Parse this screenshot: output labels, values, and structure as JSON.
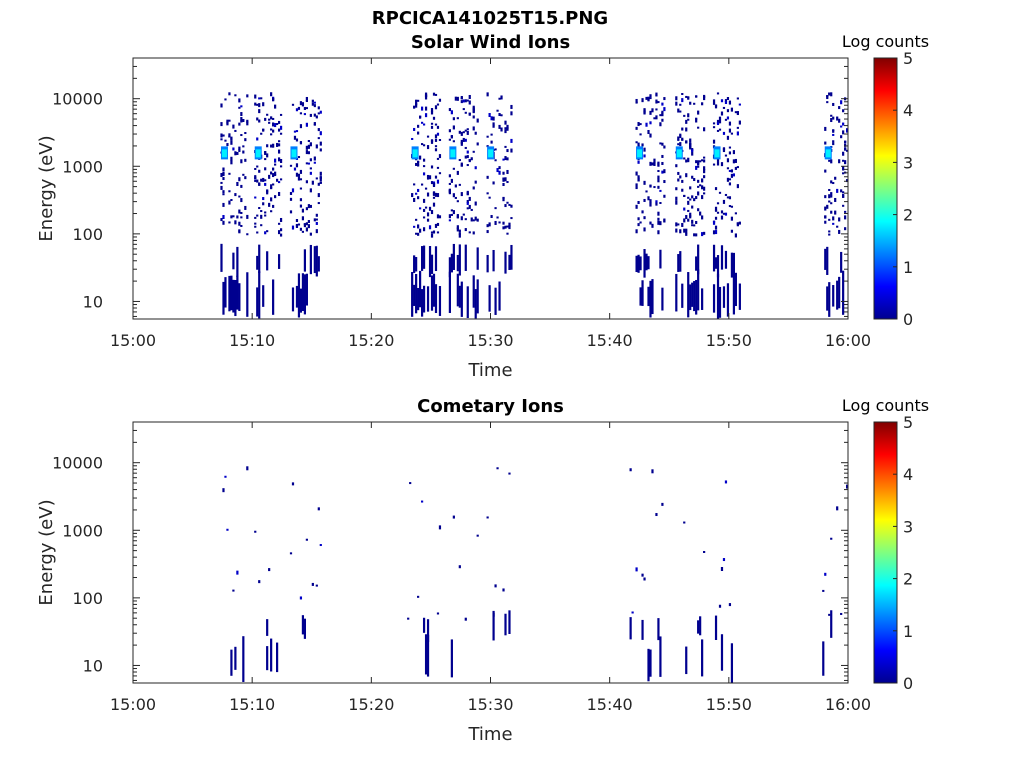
{
  "figure": {
    "title": "RPCICA141025T15.PNG"
  },
  "chart_data": [
    {
      "type": "heatmap",
      "title": "Solar Wind Ions",
      "xlabel": "Time",
      "ylabel": "Energy (eV)",
      "x_ticks": [
        "15:00",
        "15:10",
        "15:20",
        "15:30",
        "15:40",
        "15:50",
        "16:00"
      ],
      "xlim": [
        "15:00",
        "16:00"
      ],
      "y_scale": "log",
      "y_ticks": [
        "10",
        "100",
        "1000",
        "10000"
      ],
      "ylim": [
        5.5,
        40000
      ],
      "colorbar": {
        "label": "Log counts",
        "range": [
          0,
          5
        ],
        "ticks": [
          "0",
          "1",
          "2",
          "3",
          "4",
          "5"
        ],
        "colormap": "jet"
      },
      "bursts": [
        {
          "start": "15:07:20",
          "end": "15:09:40",
          "peak_energy_eV": 1500,
          "peak_log_counts": 1.8
        },
        {
          "start": "15:10:10",
          "end": "15:12:30",
          "peak_energy_eV": 1500,
          "peak_log_counts": 1.8
        },
        {
          "start": "15:13:10",
          "end": "15:15:50",
          "peak_energy_eV": 1500,
          "peak_log_counts": 1.8
        },
        {
          "start": "15:23:20",
          "end": "15:25:50",
          "peak_energy_eV": 1500,
          "peak_log_counts": 1.8
        },
        {
          "start": "15:26:30",
          "end": "15:29:00",
          "peak_energy_eV": 1500,
          "peak_log_counts": 1.8
        },
        {
          "start": "15:29:40",
          "end": "15:31:50",
          "peak_energy_eV": 1500,
          "peak_log_counts": 1.8
        },
        {
          "start": "15:42:10",
          "end": "15:44:40",
          "peak_energy_eV": 1500,
          "peak_log_counts": 1.8
        },
        {
          "start": "15:45:30",
          "end": "15:48:00",
          "peak_energy_eV": 1500,
          "peak_log_counts": 1.8
        },
        {
          "start": "15:48:40",
          "end": "15:51:00",
          "peak_energy_eV": 1500,
          "peak_log_counts": 1.8
        },
        {
          "start": "15:58:00",
          "end": "16:00:00",
          "peak_energy_eV": 1500,
          "peak_log_counts": 1.8
        }
      ]
    },
    {
      "type": "heatmap",
      "title": "Cometary Ions",
      "xlabel": "Time",
      "ylabel": "Energy (eV)",
      "x_ticks": [
        "15:00",
        "15:10",
        "15:20",
        "15:30",
        "15:40",
        "15:50",
        "16:00"
      ],
      "xlim": [
        "15:00",
        "16:00"
      ],
      "y_scale": "log",
      "y_ticks": [
        "10",
        "100",
        "1000",
        "10000"
      ],
      "ylim": [
        5.5,
        40000
      ],
      "colorbar": {
        "label": "Log counts",
        "range": [
          0,
          5
        ],
        "ticks": [
          "0",
          "1",
          "2",
          "3",
          "4",
          "5"
        ],
        "colormap": "jet"
      },
      "bursts": [
        {
          "start": "15:07:20",
          "end": "15:09:40",
          "peak_log_counts": 0.1
        },
        {
          "start": "15:10:10",
          "end": "15:12:30",
          "peak_log_counts": 0.1
        },
        {
          "start": "15:13:10",
          "end": "15:15:50",
          "peak_log_counts": 0.1
        },
        {
          "start": "15:23:00",
          "end": "15:25:50",
          "peak_log_counts": 0.1
        },
        {
          "start": "15:26:30",
          "end": "15:29:00",
          "peak_log_counts": 0.1
        },
        {
          "start": "15:29:40",
          "end": "15:31:50",
          "peak_log_counts": 0.1
        },
        {
          "start": "15:41:30",
          "end": "15:44:40",
          "peak_log_counts": 0.1
        },
        {
          "start": "15:45:30",
          "end": "15:48:00",
          "peak_log_counts": 0.1
        },
        {
          "start": "15:48:40",
          "end": "15:51:00",
          "peak_log_counts": 0.1
        },
        {
          "start": "15:57:40",
          "end": "16:00:00",
          "peak_log_counts": 0.1
        }
      ]
    }
  ]
}
